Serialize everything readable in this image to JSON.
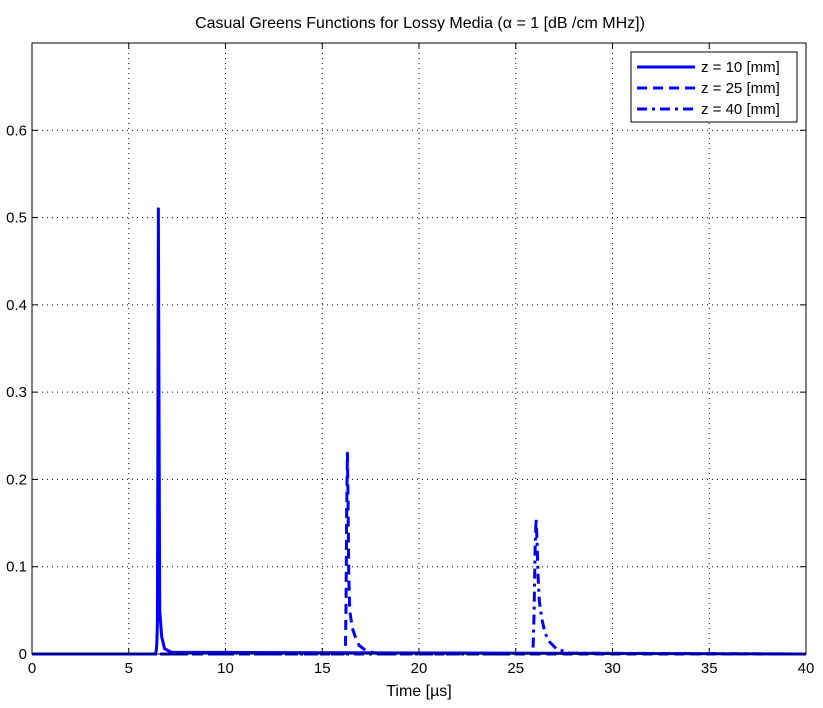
{
  "chart_data": {
    "type": "line",
    "title": "Casual Greens Functions for Lossy Media (α = 1 [dB /cm MHz])",
    "xlabel": "Time [µs]",
    "ylabel": "",
    "xlim": [
      0,
      40
    ],
    "ylim": [
      0,
      0.7
    ],
    "xticks": [
      "0",
      "5",
      "10",
      "15",
      "20",
      "25",
      "30",
      "35",
      "40"
    ],
    "yticks": [
      "0",
      "0.1",
      "0.2",
      "0.3",
      "0.4",
      "0.5",
      "0.6"
    ],
    "grid": true,
    "legend_position": "top-right",
    "line_color": "#0000ff",
    "series": [
      {
        "name": "z = 10 [mm]",
        "style": "solid",
        "points": [
          [
            0,
            0
          ],
          [
            6.38,
            0
          ],
          [
            6.42,
            0.004
          ],
          [
            6.45,
            0.012
          ],
          [
            6.48,
            0.035
          ],
          [
            6.5,
            0.2
          ],
          [
            6.53,
            0.51
          ],
          [
            6.56,
            0.3
          ],
          [
            6.6,
            0.05
          ],
          [
            6.7,
            0.02
          ],
          [
            6.85,
            0.006
          ],
          [
            7.2,
            0.002
          ],
          [
            40,
            0
          ]
        ]
      },
      {
        "name": "z = 25 [mm]",
        "style": "dashed",
        "points": [
          [
            0,
            0
          ],
          [
            16.1,
            0
          ],
          [
            16.17,
            0.003
          ],
          [
            16.2,
            0.01
          ],
          [
            16.23,
            0.06
          ],
          [
            16.26,
            0.16
          ],
          [
            16.3,
            0.23
          ],
          [
            16.33,
            0.18
          ],
          [
            16.37,
            0.09
          ],
          [
            16.42,
            0.05
          ],
          [
            16.55,
            0.03
          ],
          [
            16.7,
            0.02
          ],
          [
            16.9,
            0.01
          ],
          [
            17.3,
            0.003
          ],
          [
            18.0,
            0
          ],
          [
            40,
            0
          ]
        ]
      },
      {
        "name": "z = 40 [mm]",
        "style": "dashdot",
        "points": [
          [
            0,
            0
          ],
          [
            25.8,
            0
          ],
          [
            25.87,
            0.003
          ],
          [
            25.9,
            0.01
          ],
          [
            25.95,
            0.05
          ],
          [
            26.0,
            0.12
          ],
          [
            26.05,
            0.155
          ],
          [
            26.1,
            0.13
          ],
          [
            26.15,
            0.09
          ],
          [
            26.22,
            0.06
          ],
          [
            26.35,
            0.04
          ],
          [
            26.5,
            0.025
          ],
          [
            26.7,
            0.015
          ],
          [
            27.1,
            0.006
          ],
          [
            27.8,
            0.001
          ],
          [
            40,
            0
          ]
        ]
      }
    ]
  }
}
